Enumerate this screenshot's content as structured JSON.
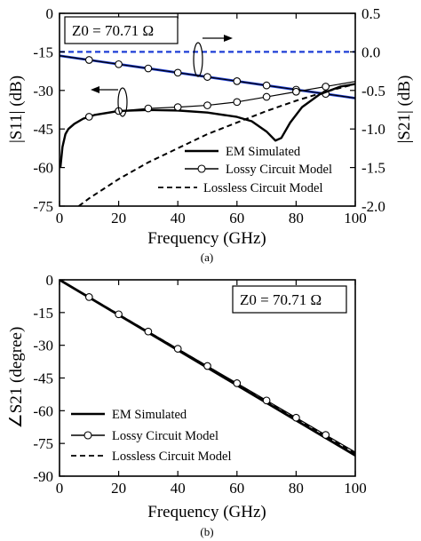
{
  "colors": {
    "em_line": "#000000",
    "lossy_line": "#000000",
    "lossless_line": "#000000",
    "s21_mag_em": "#1f3fd6",
    "s21_mag_lossless": "#1f3fd6"
  },
  "chart_data": [
    {
      "type": "line",
      "caption": "(a)",
      "annotation": "Z0 = 70.71 Ω",
      "xlabel": "Frequency (GHz)",
      "ylabel_left": "|S11| (dB)",
      "ylabel_right": "|S21| (dB)",
      "xlim": [
        0,
        100
      ],
      "ylim_left": [
        -75,
        0
      ],
      "ylim_right": [
        -2.0,
        0.5
      ],
      "x_ticks": [
        "0",
        "20",
        "40",
        "60",
        "80",
        "100"
      ],
      "y_ticks_left": [
        "-75",
        "-60",
        "-45",
        "-30",
        "-15",
        "0"
      ],
      "y_ticks_right": [
        "-2.0",
        "-1.5",
        "-1.0",
        "-0.5",
        "0.0",
        "0.5"
      ],
      "legend": {
        "position": "bottom-right",
        "entries": [
          "EM Simulated",
          "Lossy Circuit Model",
          "Lossless Circuit Model"
        ]
      },
      "series": [
        {
          "name": "EM Simulated",
          "axis": "left",
          "x": [
            0.3,
            1,
            2,
            3,
            5,
            8,
            12,
            20,
            30,
            40,
            50,
            60,
            65,
            70,
            73,
            75,
            78,
            82,
            88,
            95,
            100
          ],
          "y": [
            -60,
            -52,
            -47,
            -45,
            -43,
            -41,
            -39.5,
            -38,
            -37.6,
            -37.8,
            -38.6,
            -40.3,
            -42,
            -46,
            -49.5,
            -48.5,
            -42.5,
            -36.5,
            -31.5,
            -28.5,
            -27.5
          ]
        },
        {
          "name": "Lossy Circuit Model",
          "axis": "left",
          "x": [
            0.3,
            1,
            2,
            3,
            5,
            8,
            12,
            20,
            30,
            40,
            50,
            60,
            70,
            80,
            90,
            100
          ],
          "y": [
            -60,
            -52,
            -47,
            -45,
            -43,
            -41,
            -39.5,
            -38,
            -37,
            -36.5,
            -35.8,
            -34.5,
            -32.5,
            -30.5,
            -28.5,
            -26.5
          ],
          "markers_x": [
            10,
            20,
            30,
            40,
            50,
            60,
            70,
            80,
            90
          ]
        },
        {
          "name": "Lossless Circuit Model",
          "axis": "left",
          "x": [
            6.5,
            10,
            20,
            30,
            40,
            50,
            60,
            70,
            80,
            90,
            100
          ],
          "y": [
            -75,
            -72,
            -64.5,
            -58,
            -52.5,
            -47,
            -42.5,
            -38,
            -34,
            -30.5,
            -27.5
          ]
        },
        {
          "name": "EM Simulated",
          "axis": "right",
          "x": [
            0,
            100
          ],
          "y": [
            -0.05,
            -0.6
          ]
        },
        {
          "name": "Lossy Circuit Model",
          "axis": "right",
          "x": [
            0,
            10,
            20,
            30,
            40,
            50,
            60,
            70,
            80,
            90,
            100
          ],
          "y": [
            -0.05,
            -0.105,
            -0.16,
            -0.215,
            -0.27,
            -0.325,
            -0.38,
            -0.435,
            -0.49,
            -0.545,
            -0.6
          ],
          "markers_x": [
            10,
            20,
            30,
            40,
            50,
            60,
            70,
            80,
            90
          ]
        },
        {
          "name": "Lossless Circuit Model",
          "axis": "right",
          "x": [
            0,
            100
          ],
          "y": [
            0.0,
            0.0
          ]
        }
      ]
    },
    {
      "type": "line",
      "caption": "(b)",
      "annotation": "Z0 = 70.71 Ω",
      "xlabel": "Frequency (GHz)",
      "ylabel": "∠S21 (degree)",
      "xlim": [
        0,
        100
      ],
      "ylim": [
        -90,
        0
      ],
      "x_ticks": [
        "0",
        "20",
        "40",
        "60",
        "80",
        "100"
      ],
      "y_ticks": [
        "-90",
        "-75",
        "-60",
        "-45",
        "-30",
        "-15",
        "0"
      ],
      "legend": {
        "position": "bottom-left",
        "entries": [
          "EM Simulated",
          "Lossy Circuit Model",
          "Lossless Circuit Model"
        ]
      },
      "series": [
        {
          "name": "EM Simulated",
          "x": [
            0,
            100
          ],
          "y": [
            0,
            -80.5
          ]
        },
        {
          "name": "Lossy Circuit Model",
          "x": [
            0,
            10,
            20,
            30,
            40,
            50,
            60,
            70,
            80,
            90,
            100
          ],
          "y": [
            0,
            -7.9,
            -15.8,
            -23.7,
            -31.6,
            -39.5,
            -47.4,
            -55.3,
            -63.2,
            -71.1,
            -79
          ],
          "markers_x": [
            10,
            20,
            30,
            40,
            50,
            60,
            70,
            80,
            90
          ]
        },
        {
          "name": "Lossless Circuit Model",
          "x": [
            0,
            100
          ],
          "y": [
            0,
            -79.5
          ]
        }
      ]
    }
  ]
}
